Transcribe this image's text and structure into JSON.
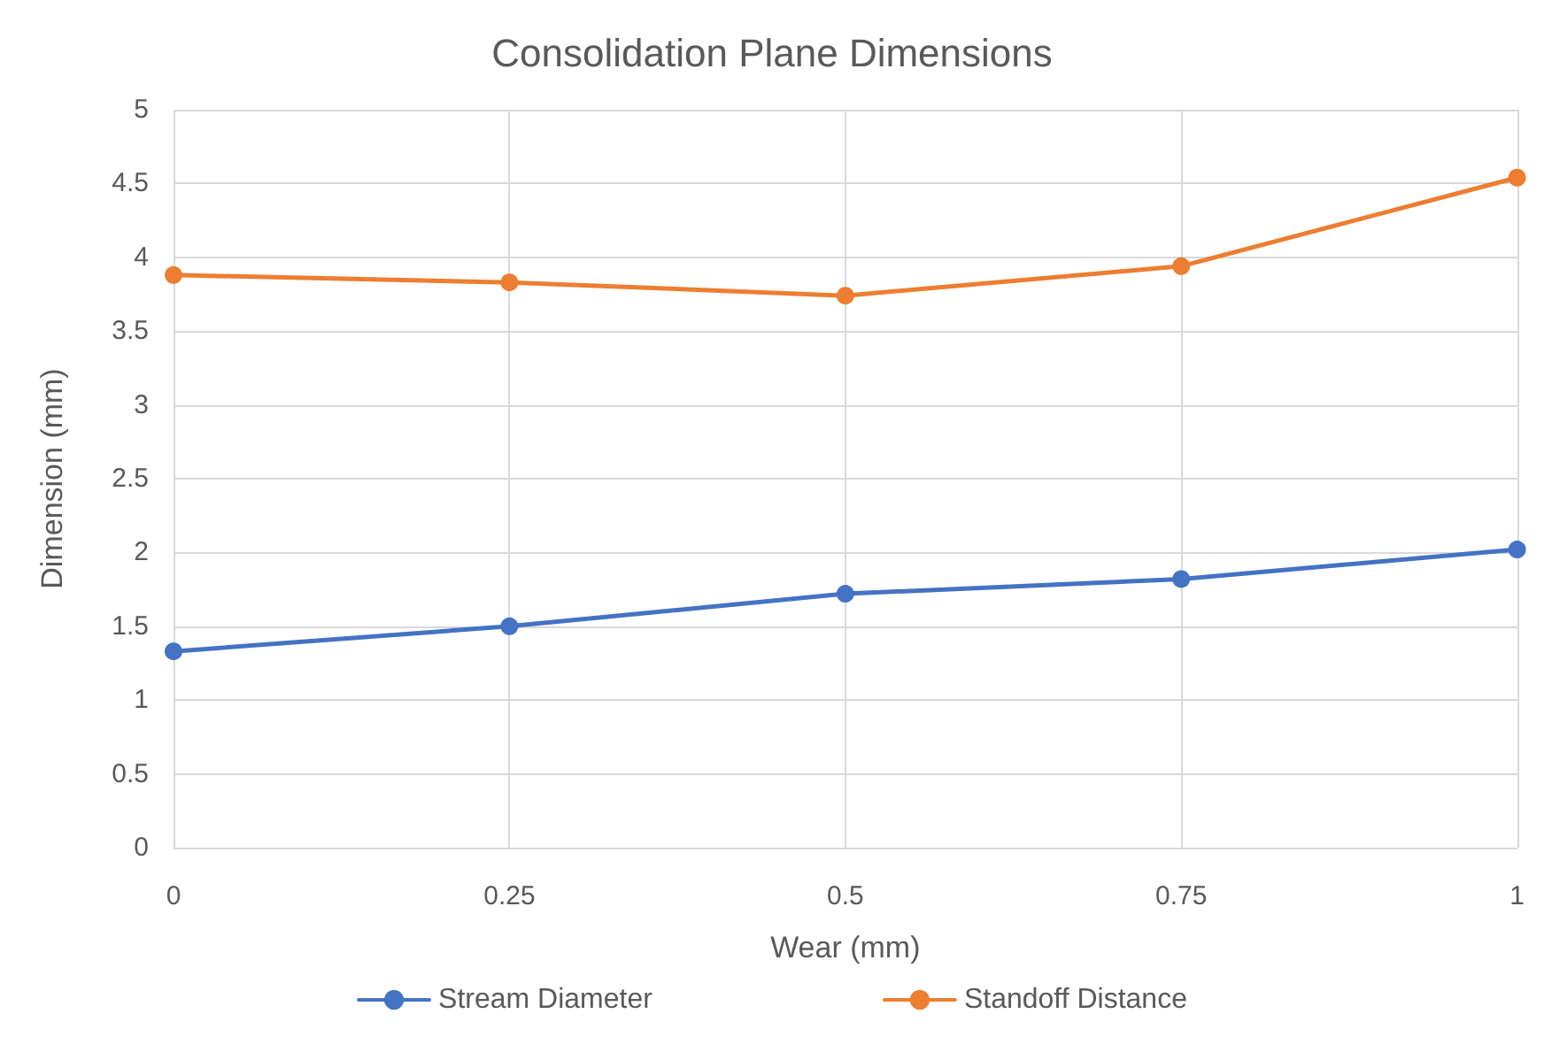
{
  "chart_data": {
    "type": "line",
    "title": "Consolidation Plane Dimensions",
    "xlabel": "Wear (mm)",
    "ylabel": "Dimension (mm)",
    "x": [
      0,
      0.25,
      0.5,
      0.75,
      1
    ],
    "series": [
      {
        "name": "Stream Diameter",
        "color": "#4472c4",
        "values": [
          1.33,
          1.5,
          1.72,
          1.82,
          2.02
        ]
      },
      {
        "name": "Standoff Distance",
        "color": "#ed7d31",
        "values": [
          3.88,
          3.83,
          3.74,
          3.94,
          4.54
        ]
      }
    ],
    "xlim": [
      0,
      1
    ],
    "xticks": [
      0,
      0.25,
      0.5,
      0.75,
      1
    ],
    "ylim": [
      0,
      5
    ],
    "yticks": [
      0,
      0.5,
      1,
      1.5,
      2,
      2.5,
      3,
      3.5,
      4,
      4.5,
      5
    ],
    "grid": true,
    "legend": "bottom",
    "marker": "circle",
    "line_style": "solid"
  }
}
